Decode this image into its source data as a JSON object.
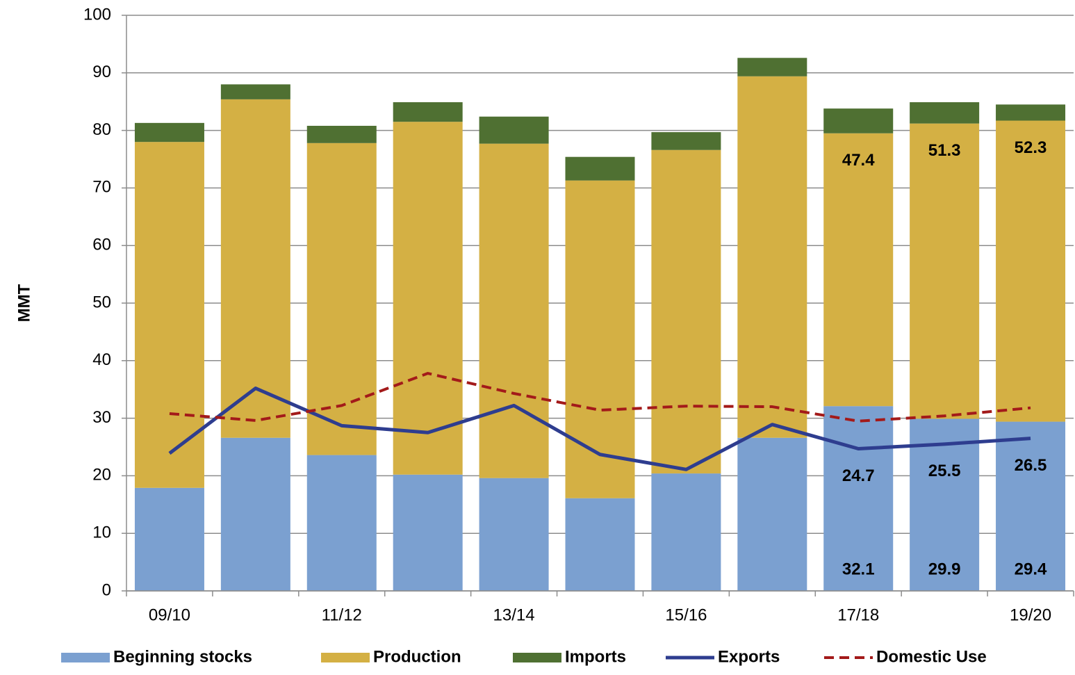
{
  "chart_data": {
    "type": "bar",
    "stacked": true,
    "y_label": "MMT",
    "categories": [
      "09/10",
      null,
      "11/12",
      null,
      "13/14",
      null,
      "15/16",
      null,
      "17/18",
      null,
      "19/20"
    ],
    "series": [
      {
        "name": "Beginning stocks",
        "type": "bar",
        "color": "#7ba0d0",
        "labeled": [
          8,
          9,
          10
        ],
        "values": [
          17.9,
          26.6,
          23.6,
          20.2,
          19.6,
          16.1,
          20.4,
          26.6,
          32.1,
          29.9,
          29.4
        ]
      },
      {
        "name": "Production",
        "type": "bar",
        "color": "#d4b044",
        "labeled": [
          8,
          9,
          10
        ],
        "values": [
          60.1,
          58.8,
          54.2,
          61.3,
          58.1,
          55.2,
          56.2,
          62.8,
          47.4,
          51.3,
          52.3
        ]
      },
      {
        "name": "Imports",
        "type": "bar",
        "color": "#4f7032",
        "values": [
          3.3,
          2.6,
          3.0,
          3.4,
          4.7,
          4.1,
          3.1,
          3.2,
          4.3,
          3.7,
          2.8
        ]
      },
      {
        "name": "Exports",
        "type": "line",
        "color": "#2e3d8f",
        "dashed": false,
        "labeled": [
          8,
          9,
          10
        ],
        "values": [
          23.9,
          35.2,
          28.7,
          27.5,
          32.2,
          23.7,
          21.1,
          28.9,
          24.7,
          25.5,
          26.5
        ]
      },
      {
        "name": "Domestic Use",
        "type": "line",
        "color": "#a31a1a",
        "dashed": true,
        "values": [
          30.8,
          29.6,
          32.2,
          37.8,
          34.3,
          31.4,
          32.1,
          32.0,
          29.5,
          30.4,
          31.8
        ]
      }
    ],
    "ylim": [
      0,
      100
    ],
    "yticks": [
      0,
      10,
      20,
      30,
      40,
      50,
      60,
      70,
      80,
      90,
      100
    ],
    "grid": true,
    "legend": "bottom"
  }
}
